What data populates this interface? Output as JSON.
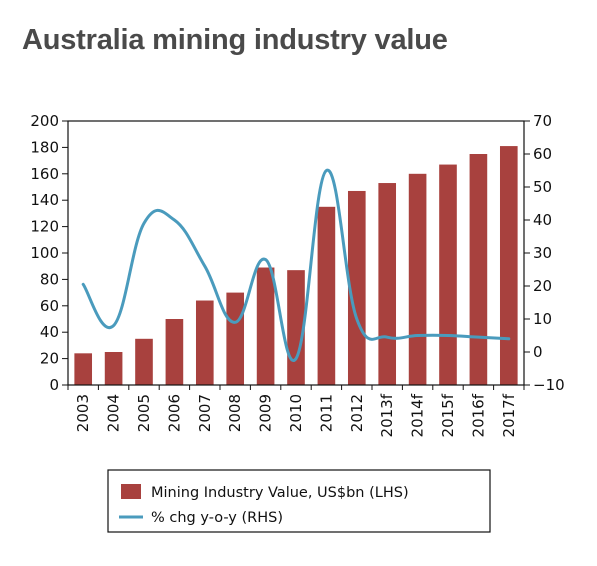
{
  "title": "Australia mining industry value",
  "chart_data": {
    "type": "bar",
    "categories": [
      "2003",
      "2004",
      "2005",
      "2006",
      "2007",
      "2008",
      "2009",
      "2010",
      "2011",
      "2012",
      "2013f",
      "2014f",
      "2015f",
      "2016f",
      "2017f"
    ],
    "series": [
      {
        "name": "Mining Industry Value, US$bn (LHS)",
        "type": "bar",
        "axis": "left",
        "color": "#a8413e",
        "values": [
          24,
          25,
          35,
          50,
          64,
          70,
          89,
          87,
          135,
          147,
          153,
          160,
          167,
          175,
          181
        ]
      },
      {
        "name": "% chg y-o-y (RHS)",
        "type": "line",
        "axis": "right",
        "color": "#4a9bbd",
        "values": [
          20.5,
          8,
          39,
          40,
          26,
          9,
          28,
          -2,
          55,
          10,
          4.5,
          5,
          5,
          4.5,
          4
        ]
      }
    ],
    "y_left": {
      "min": 0,
      "max": 200,
      "ticks": [
        0,
        20,
        40,
        60,
        80,
        100,
        120,
        140,
        160,
        180,
        200
      ]
    },
    "y_right": {
      "min": -10,
      "max": 70,
      "ticks": [
        -10,
        0,
        10,
        20,
        30,
        40,
        50,
        60,
        70
      ]
    },
    "grid": false,
    "legend_position": "bottom"
  }
}
